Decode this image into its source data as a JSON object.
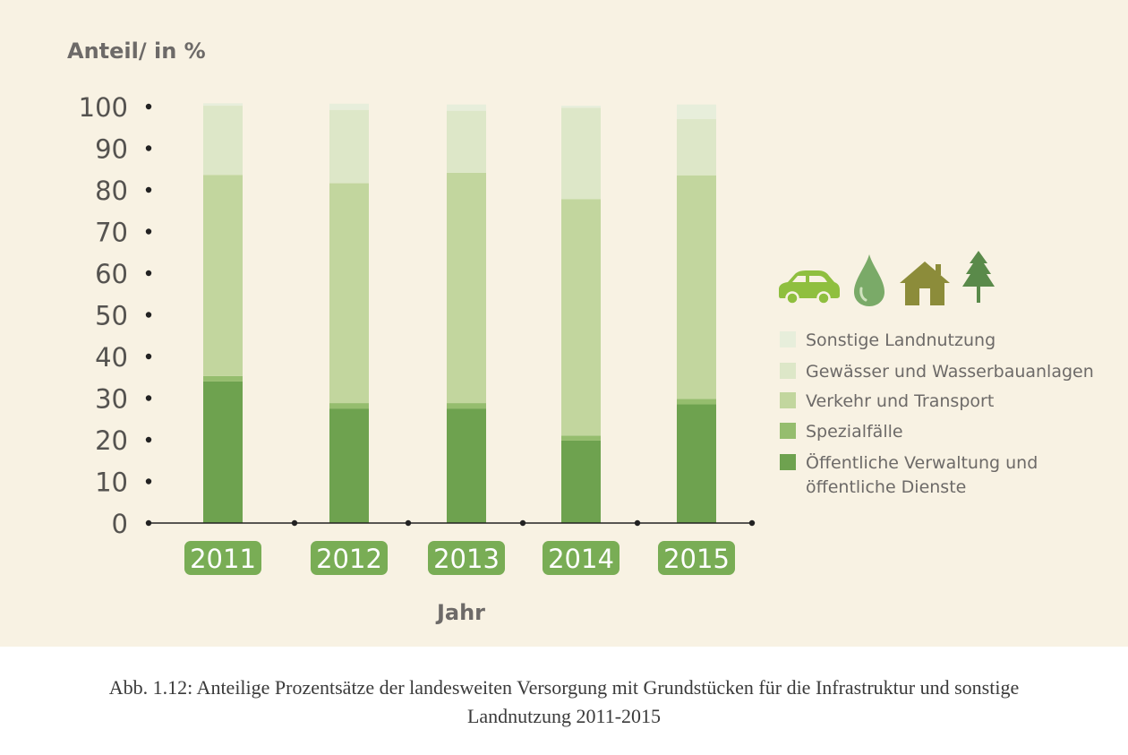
{
  "chart_data": {
    "type": "bar",
    "stacked": true,
    "ylabel": "Anteil/ in %",
    "xlabel": "Jahr",
    "ylim": [
      0,
      100
    ],
    "yticks": [
      0,
      10,
      20,
      30,
      40,
      50,
      60,
      70,
      80,
      90,
      100
    ],
    "categories": [
      "2011",
      "2012",
      "2013",
      "2014",
      "2015"
    ],
    "series": [
      {
        "name": "Öffentliche Verwaltung und öffentliche Dienste",
        "color": "#6ea24f",
        "values": [
          34,
          27.5,
          27.5,
          19.8,
          28.5
        ]
      },
      {
        "name": "Spezialfälle",
        "color": "#95bd6e",
        "values": [
          1.3,
          1.3,
          1.3,
          1.2,
          1.3
        ]
      },
      {
        "name": "Verkehr und Transport",
        "color": "#c2d69e",
        "values": [
          48.3,
          52.8,
          55.3,
          56.8,
          53.7
        ]
      },
      {
        "name": "Gewässer und Wasserbauanlagen",
        "color": "#dde7c8",
        "values": [
          16.6,
          17.6,
          14.9,
          21.9,
          13.5
        ]
      },
      {
        "name": "Sonstige Landnutzung",
        "color": "#e7eedb",
        "values": [
          0.6,
          1.5,
          1.5,
          0.5,
          3.5
        ]
      }
    ],
    "legend": {
      "position": "right",
      "order": [
        "Sonstige Landnutzung",
        "Gewässer und Wasserbauanlagen",
        "Verkehr und Transport",
        "Spezialfälle",
        "Öffentliche Verwaltung und öffentliche Dienste"
      ],
      "lines": [
        [
          "Sonstige Landnutzung"
        ],
        [
          "Gewässer und Wasserbauanlagen"
        ],
        [
          "Verkehr und Transport"
        ],
        [
          "Spezialfälle"
        ],
        [
          "Öffentliche Verwaltung und",
          "öffentliche Dienste"
        ]
      ],
      "icons": [
        "car-icon",
        "water-drop-icon",
        "house-icon",
        "tree-icon"
      ]
    },
    "grid": false
  },
  "caption": {
    "line1": "Abb. 1.12: Anteilige Prozentsätze der landesweiten Versorgung mit Grundstücken für die Infrastruktur und sonstige",
    "line2": "Landnutzung 2011-2015"
  },
  "colors": {
    "background": "#f8f2e3",
    "year_badge": "#79ad55",
    "axis": "#222222",
    "icon_car": "#8fbf3f",
    "icon_drop": "#7aaa68",
    "icon_house": "#8c8c3a",
    "icon_tree": "#5a8a4a"
  }
}
